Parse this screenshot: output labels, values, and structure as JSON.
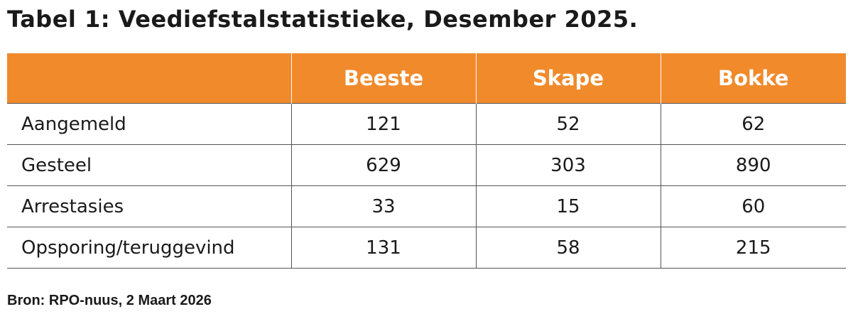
{
  "title": "Tabel 1: Veediefstalstatistieke, Desember 2025.",
  "table": {
    "headers": [
      "",
      "Beeste",
      "Skape",
      "Bokke"
    ],
    "rows": [
      {
        "label": "Aangemeld",
        "beeste": "121",
        "skape": "52",
        "bokke": "62"
      },
      {
        "label": "Gesteel",
        "beeste": "629",
        "skape": "303",
        "bokke": "890"
      },
      {
        "label": "Arrestasies",
        "beeste": "33",
        "skape": "15",
        "bokke": "60"
      },
      {
        "label": "Opsporing/teruggevind",
        "beeste": "131",
        "skape": "58",
        "bokke": "215"
      }
    ]
  },
  "source": "Bron: RPO-nuus, 2 Maart 2026",
  "colors": {
    "header_background": "#f08a2b",
    "header_text": "#ffffff",
    "rule": "#555555"
  }
}
